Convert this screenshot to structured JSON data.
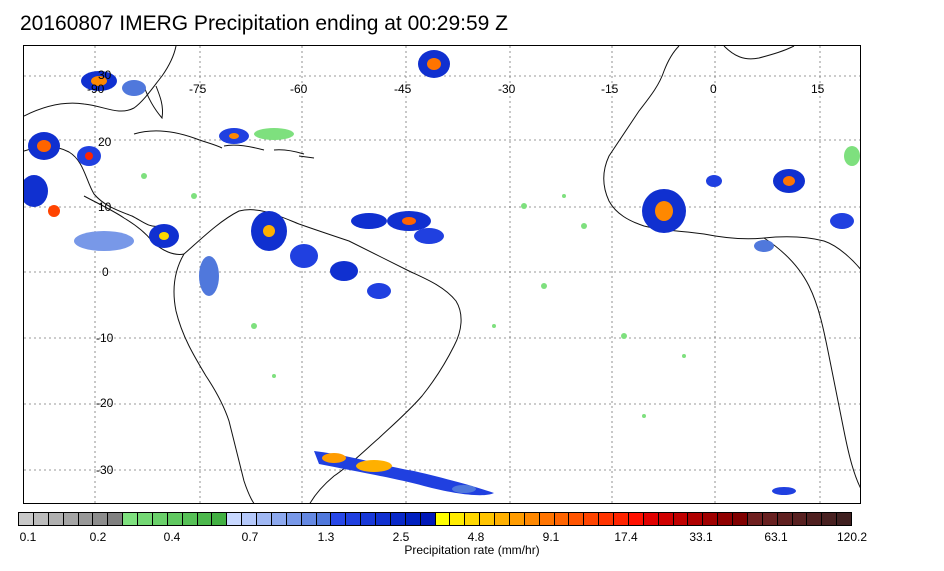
{
  "title": "20160807 IMERG Precipitation ending at 00:29:59 Z",
  "map": {
    "lon_labels": [
      "-90",
      "-75",
      "-60",
      "-45",
      "-30",
      "-15",
      "0",
      "15"
    ],
    "lat_labels": [
      "30",
      "20",
      "10",
      "0",
      "-10",
      "-20",
      "-30"
    ],
    "gridlines": true
  },
  "colorbar": {
    "label": "Precipitation rate (mm/hr)",
    "tick_labels": [
      "0.1",
      "0.2",
      "0.4",
      "0.7",
      "1.3",
      "2.5",
      "4.8",
      "9.1",
      "17.4",
      "33.1",
      "63.1",
      "120.2"
    ],
    "colors": [
      "#c8c8c8",
      "#bcbcbc",
      "#b0b0b0",
      "#a4a4a4",
      "#989898",
      "#8c8c8c",
      "#808080",
      "#7ee07e",
      "#74d874",
      "#6ad06a",
      "#60c860",
      "#56c056",
      "#4cb84c",
      "#42b042",
      "#c8d8ff",
      "#b4c8fa",
      "#a0b8f4",
      "#8ca8ee",
      "#7898e8",
      "#6488e2",
      "#5078dc",
      "#2848e8",
      "#2040e0",
      "#1838d8",
      "#1030d0",
      "#0828c8",
      "#0020c0",
      "#0018b8",
      "#ffff00",
      "#ffec00",
      "#ffd800",
      "#ffc400",
      "#ffb000",
      "#ff9c00",
      "#ff8800",
      "#ff7400",
      "#ff6400",
      "#ff5400",
      "#ff4400",
      "#ff3400",
      "#ff2400",
      "#ff1000",
      "#e00000",
      "#d00000",
      "#c00000",
      "#b00000",
      "#a00000",
      "#900000",
      "#800000",
      "#702020",
      "#682020",
      "#602020",
      "#582020",
      "#502020",
      "#482020",
      "#402020"
    ]
  }
}
